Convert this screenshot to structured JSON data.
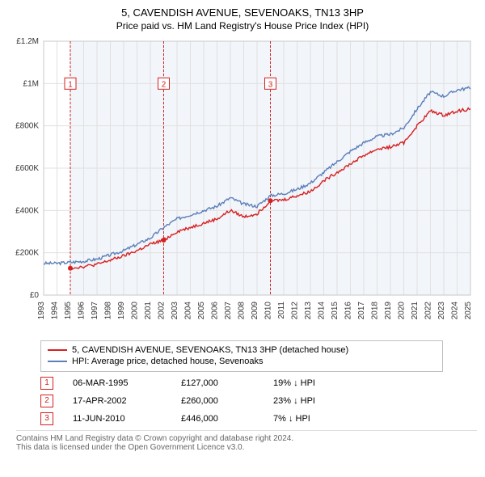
{
  "title": "5, CAVENDISH AVENUE, SEVENOAKS, TN13 3HP",
  "subtitle": "Price paid vs. HM Land Registry's House Price Index (HPI)",
  "chart": {
    "type": "line",
    "x_years": [
      1993,
      1994,
      1995,
      1996,
      1997,
      1998,
      1999,
      2000,
      2001,
      2002,
      2003,
      2004,
      2005,
      2006,
      2007,
      2008,
      2009,
      2010,
      2011,
      2012,
      2013,
      2014,
      2015,
      2016,
      2017,
      2018,
      2019,
      2020,
      2021,
      2022,
      2023,
      2024,
      2025
    ],
    "ylim": [
      0,
      1200000
    ],
    "yticks": [
      0,
      200000,
      400000,
      600000,
      800000,
      1000000,
      1200000
    ],
    "ytick_labels": [
      "£0",
      "£200K",
      "£400K",
      "£600K",
      "£800K",
      "£1M",
      "£1.2M"
    ],
    "grid_color": "#e0e0e0",
    "background_color": "#ffffff",
    "area_fill": "#f2f5fa",
    "series": [
      {
        "name": "hpi",
        "label": "HPI: Average price, detached house, Sevenoaks",
        "color": "#5b7fb8",
        "width": 1.4,
        "y": [
          150000,
          150000,
          155000,
          160000,
          170000,
          190000,
          210000,
          240000,
          270000,
          320000,
          360000,
          380000,
          400000,
          420000,
          460000,
          430000,
          420000,
          470000,
          480000,
          500000,
          530000,
          580000,
          630000,
          680000,
          720000,
          750000,
          760000,
          790000,
          880000,
          960000,
          940000,
          970000,
          980000
        ]
      },
      {
        "name": "property",
        "label": "5, CAVENDISH AVENUE, SEVENOAKS, TN13 3HP (detached house)",
        "color": "#d62020",
        "width": 1.4,
        "y": [
          null,
          null,
          127000,
          135000,
          145000,
          165000,
          185000,
          210000,
          240000,
          260000,
          300000,
          320000,
          340000,
          360000,
          400000,
          370000,
          385000,
          446000,
          450000,
          470000,
          490000,
          540000,
          580000,
          620000,
          660000,
          690000,
          700000,
          720000,
          800000,
          870000,
          850000,
          870000,
          880000
        ]
      }
    ],
    "sale_markers": [
      {
        "n": "1",
        "year": 1995,
        "y": 127000,
        "label_y": 1000000,
        "color": "#d62020"
      },
      {
        "n": "2",
        "year": 2002,
        "y": 260000,
        "label_y": 1000000,
        "color": "#d62020"
      },
      {
        "n": "3",
        "year": 2010,
        "y": 446000,
        "label_y": 1000000,
        "color": "#d62020"
      }
    ]
  },
  "legend": {
    "items": [
      {
        "color": "#d62020",
        "text": "5, CAVENDISH AVENUE, SEVENOAKS, TN13 3HP (detached house)"
      },
      {
        "color": "#5b7fb8",
        "text": "HPI: Average price, detached house, Sevenoaks"
      }
    ]
  },
  "sales": [
    {
      "n": "1",
      "date": "06-MAR-1995",
      "price": "£127,000",
      "delta": "19% ↓ HPI",
      "box_color": "#d62020"
    },
    {
      "n": "2",
      "date": "17-APR-2002",
      "price": "£260,000",
      "delta": "23% ↓ HPI",
      "box_color": "#d62020"
    },
    {
      "n": "3",
      "date": "11-JUN-2010",
      "price": "£446,000",
      "delta": "7% ↓ HPI",
      "box_color": "#d62020"
    }
  ],
  "footer_line1": "Contains HM Land Registry data © Crown copyright and database right 2024.",
  "footer_line2": "This data is licensed under the Open Government Licence v3.0."
}
